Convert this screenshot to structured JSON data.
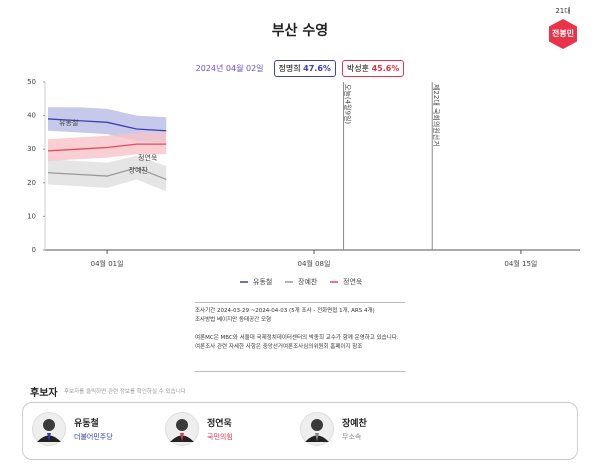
{
  "header": {
    "title": "부산 수영",
    "badge_era": "21대",
    "badge_name": "전봉민",
    "date": "2024년 04월 02일",
    "leaders": [
      {
        "name": "정명희",
        "share": "47.6%"
      },
      {
        "name": "박성훈",
        "share": "45.6%"
      }
    ]
  },
  "chart_data": {
    "type": "line",
    "x": [
      "03-30",
      "03-31",
      "04-01",
      "04-02",
      "04-03"
    ],
    "xlim": [
      "03-30",
      "04-17"
    ],
    "xticks": [
      {
        "value": "04-01",
        "label": "04월 01일"
      },
      {
        "value": "04-08",
        "label": "04월 08일"
      },
      {
        "value": "04-15",
        "label": "04월 15일"
      }
    ],
    "ylim": [
      0,
      50
    ],
    "yticks": [
      0,
      10,
      20,
      30,
      40,
      50
    ],
    "grid": false,
    "series": [
      {
        "name": "유동철",
        "color": "#3b40b5",
        "band_color": "#b9bce6",
        "values": [
          39,
          38.5,
          38,
          36,
          35.5
        ],
        "upper": [
          42.5,
          42.5,
          42,
          40,
          39.5
        ],
        "lower": [
          35.5,
          35,
          34.5,
          32.5,
          32
        ]
      },
      {
        "name": "장예찬",
        "color": "#9a9a9a",
        "band_color": "#dedede",
        "values": [
          23,
          22.5,
          22,
          24.5,
          21
        ],
        "upper": [
          27,
          26.5,
          26,
          28,
          25
        ],
        "lower": [
          19.5,
          19,
          18.5,
          21,
          17.5
        ]
      },
      {
        "name": "정연욱",
        "color": "#e8485a",
        "band_color": "#f8c3c9",
        "values": [
          29.5,
          30,
          30.5,
          31.5,
          31.5
        ],
        "upper": [
          33,
          33.5,
          34,
          35,
          35
        ],
        "lower": [
          26.5,
          27,
          27.5,
          28.5,
          28.5
        ]
      }
    ],
    "events": [
      {
        "x": "04-09",
        "label": "오늘(4월9일)"
      },
      {
        "x": "04-12",
        "label": "제22대 국회의원선거"
      }
    ]
  },
  "notes": [
    "조사기간 2024-03-29 ~2024-04-03 (5개 조사 - 전화면접 1개, ARS 4개)",
    "조사방법 베이지안 동태공간 모형",
    "여론MC은 MBC와 서울대 국제정치데이터센터의 박종희 교수가 함께 운영하고 있습니다.",
    "여론조사 관련 자세한 사항은 중앙선거여론조사심의위원회 홈페이지 참조"
  ],
  "candidates": {
    "title": "후보자",
    "hint": "후보자를 클릭하면 관련 정보를 확인하실 수 있습니다",
    "list": [
      {
        "name": "유동철",
        "party": "더불어민주당",
        "color": "#2b3eb0"
      },
      {
        "name": "정연욱",
        "party": "국민의힘",
        "color": "#e8334a"
      },
      {
        "name": "장예찬",
        "party": "무소속",
        "color": "#888888"
      }
    ]
  }
}
